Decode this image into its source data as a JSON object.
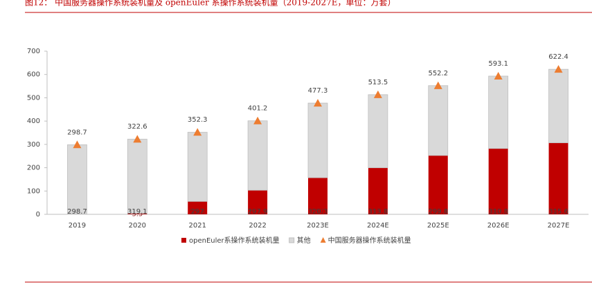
{
  "chart_data": {
    "type": "bar",
    "stacked": true,
    "title": "图12：  中国服务器操作系统装机量及 openEuler 系操作系统装机量（2019-2027E，单位：万套）",
    "categories": [
      "2019",
      "2020",
      "2021",
      "2022",
      "2023E",
      "2024E",
      "2025E",
      "2026E",
      "2027E"
    ],
    "series": [
      {
        "name": "openEuler系操作系统装机量",
        "color": "#c00000",
        "label_color": "#8b1a1a",
        "values": [
          null,
          3.5,
          55.3,
          103.3,
          157,
          199.7,
          252.4,
          282.3,
          306.8
        ]
      },
      {
        "name": "其他",
        "color": "#d9d9d9",
        "label_color": "#404040",
        "values": [
          298.7,
          319.1,
          297,
          297.9,
          320.3,
          313.8,
          299.8,
          310.8,
          315.6
        ]
      },
      {
        "name": "中国服务器操作系统装机量",
        "type": "scatter",
        "marker": "triangle",
        "color": "#ed7d31",
        "label_color": "#404040",
        "values": [
          298.7,
          322.6,
          352.3,
          401.2,
          477.3,
          513.5,
          552.2,
          593.1,
          622.4
        ]
      }
    ],
    "ylim": [
      0,
      700
    ],
    "yticks": [
      0,
      100,
      200,
      300,
      400,
      500,
      600,
      700
    ],
    "grid": false,
    "legend": "bottom"
  }
}
